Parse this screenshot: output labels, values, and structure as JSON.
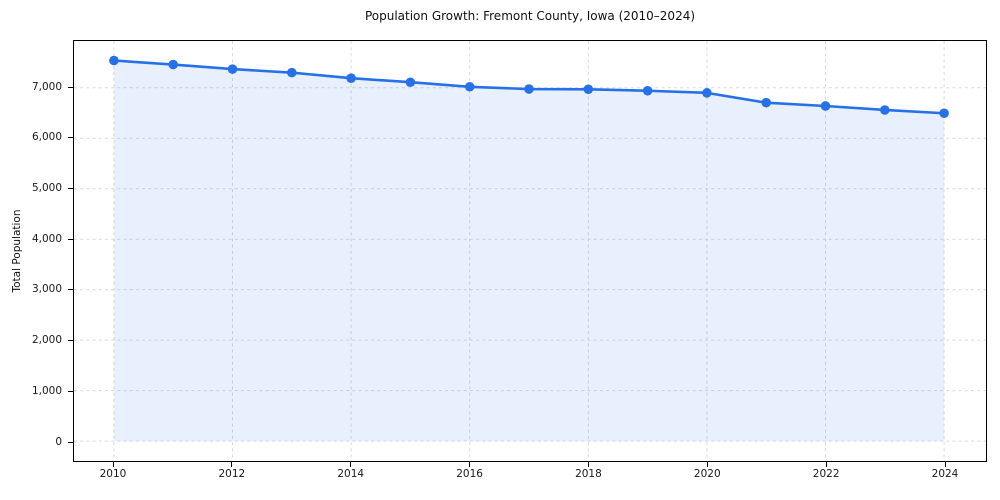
{
  "chart_data": {
    "type": "area",
    "title": "Population Growth: Fremont County, Iowa (2010–2024)",
    "xlabel": "",
    "ylabel": "Total Population",
    "x": [
      2010,
      2011,
      2012,
      2013,
      2014,
      2015,
      2016,
      2017,
      2018,
      2019,
      2020,
      2021,
      2022,
      2023,
      2024
    ],
    "values": [
      7540,
      7460,
      7370,
      7300,
      7190,
      7110,
      7020,
      6975,
      6970,
      6940,
      6900,
      6705,
      6640,
      6560,
      6495
    ],
    "xticks": [
      2010,
      2012,
      2014,
      2016,
      2018,
      2020,
      2022,
      2024
    ],
    "yticks": [
      0,
      1000,
      2000,
      3000,
      4000,
      5000,
      6000,
      7000
    ],
    "ylim": [
      0,
      7930
    ],
    "grid": true,
    "legend": "none",
    "line_color": "#2670e8",
    "fill_color": "rgba(38, 112, 232, 0.10)",
    "marker": "circle",
    "grid_color": "#d9d9d9"
  }
}
